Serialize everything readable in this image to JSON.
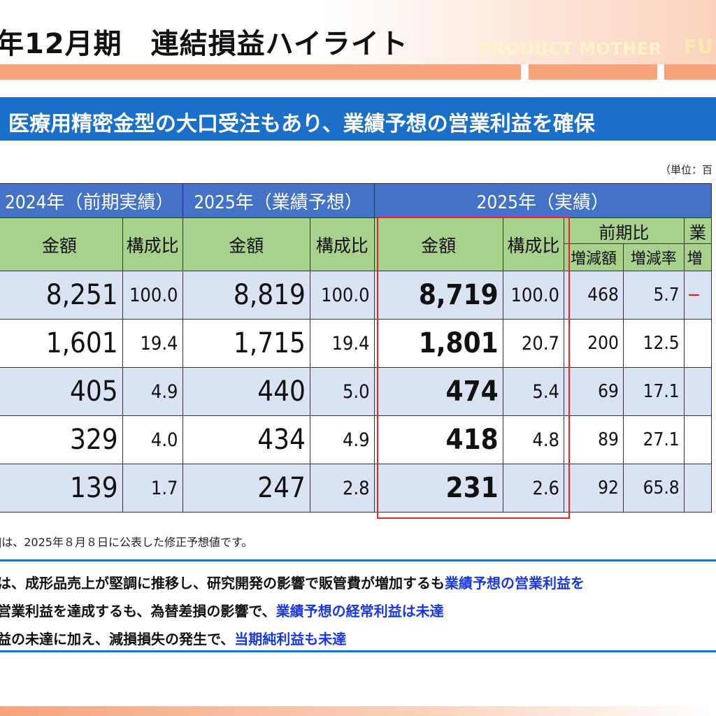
{
  "header": {
    "title": "年12月期　連結損益ハイライト",
    "tagline": "PRODUCT MOTHER",
    "tagline_cut": "FU"
  },
  "headline": "医療用精密金型の大口受注もあり、業績予想の営業利益を確保",
  "unit": "（単位：百",
  "table": {
    "period_headers": [
      "2024年（前期実績）",
      "2025年（業績予想）",
      "2025年（実績）"
    ],
    "sub_headers": {
      "amount": "金額",
      "ratio": "構成比",
      "yoy": "前期比",
      "forecast_cmp": "業",
      "change_amount": "増減額",
      "change_rate": "増減率",
      "forecast_change": "増"
    },
    "rows": [
      {
        "prev": "8,251",
        "prev_ratio": "100.0",
        "fc": "8,819",
        "fc_ratio": "100.0",
        "act": "8,719",
        "act_ratio": "100.0",
        "chg": "468",
        "rate": "5.7",
        "fc_chg": "−"
      },
      {
        "prev": "1,601",
        "prev_ratio": "19.4",
        "fc": "1,715",
        "fc_ratio": "19.4",
        "act": "1,801",
        "act_ratio": "20.7",
        "chg": "200",
        "rate": "12.5",
        "fc_chg": ""
      },
      {
        "prev": "405",
        "prev_ratio": "4.9",
        "fc": "440",
        "fc_ratio": "5.0",
        "act": "474",
        "act_ratio": "5.4",
        "chg": "69",
        "rate": "17.1",
        "fc_chg": ""
      },
      {
        "prev": "329",
        "prev_ratio": "4.0",
        "fc": "434",
        "fc_ratio": "4.9",
        "act": "418",
        "act_ratio": "4.8",
        "chg": "89",
        "rate": "27.1",
        "fc_chg": ""
      },
      {
        "prev": "139",
        "prev_ratio": "1.7",
        "fc": "247",
        "fc_ratio": "2.8",
        "act": "231",
        "act_ratio": "2.6",
        "chg": "92",
        "rate": "65.8",
        "fc_chg": ""
      }
    ]
  },
  "footnote": "]は、2025年８月８日に公表した修正予想値です。",
  "bullets": [
    {
      "text": "は、成形品売上が堅調に推移し、研究開発の影響で販管費が増加するも",
      "highlight": "業績予想の営業利益を"
    },
    {
      "text": "営業利益を達成するも、為替差損の影響で、",
      "highlight": "業績予想の経常利益は未達"
    },
    {
      "text": "益の未達に加え、減損損失の発生で、",
      "highlight": "当期純利益も未達"
    }
  ],
  "colors": {
    "header_blue": "#4472c4",
    "headline_blue": "#1c6fc6",
    "label_green": "#a9d18e",
    "row_blue": "#dae3f3",
    "highlight_red": "#e3262a",
    "accent_orange": "#f6a37b",
    "emphasis_blue": "#1c39d8"
  }
}
